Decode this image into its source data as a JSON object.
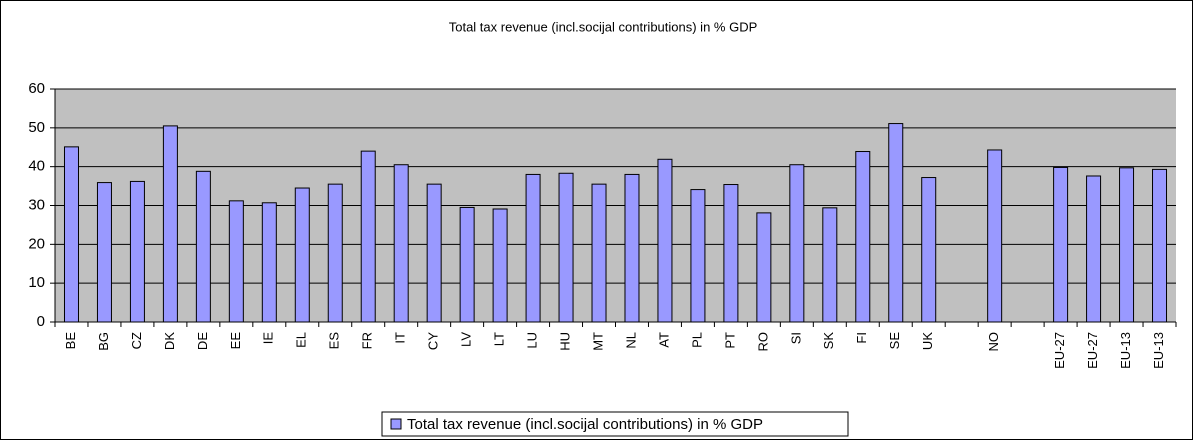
{
  "chart_data": {
    "type": "bar",
    "title": "Total tax revenue (incl.socijal contributions) in % GDP",
    "categories": [
      "BE",
      "BG",
      "CZ",
      "DK",
      "DE",
      "EE",
      "IE",
      "EL",
      "ES",
      "FR",
      "IT",
      "CY",
      "LV",
      "LT",
      "LU",
      "HU",
      "MT",
      "NL",
      "AT",
      "PL",
      "PT",
      "RO",
      "SI",
      "SK",
      "FI",
      "SE",
      "UK",
      null,
      "NO",
      null,
      "EU-27",
      "EU-27",
      "EU-13",
      "EU-13"
    ],
    "series": [
      {
        "name": "Total tax revenue (incl.socijal contributions) in % GDP",
        "color": "#9999ff",
        "values": [
          45.1,
          35.9,
          36.2,
          50.5,
          38.8,
          31.2,
          30.7,
          34.5,
          35.5,
          44.0,
          40.5,
          35.5,
          29.5,
          29.1,
          38.0,
          38.3,
          35.5,
          38.0,
          41.9,
          34.1,
          35.4,
          28.1,
          40.5,
          29.4,
          43.9,
          51.1,
          37.2,
          null,
          44.3,
          null,
          39.8,
          37.6,
          39.7,
          39.3
        ]
      }
    ],
    "ylim": [
      0,
      60
    ],
    "yticks": [
      0,
      10,
      20,
      30,
      40,
      50,
      60
    ],
    "grid": true,
    "legend": "bottom"
  }
}
